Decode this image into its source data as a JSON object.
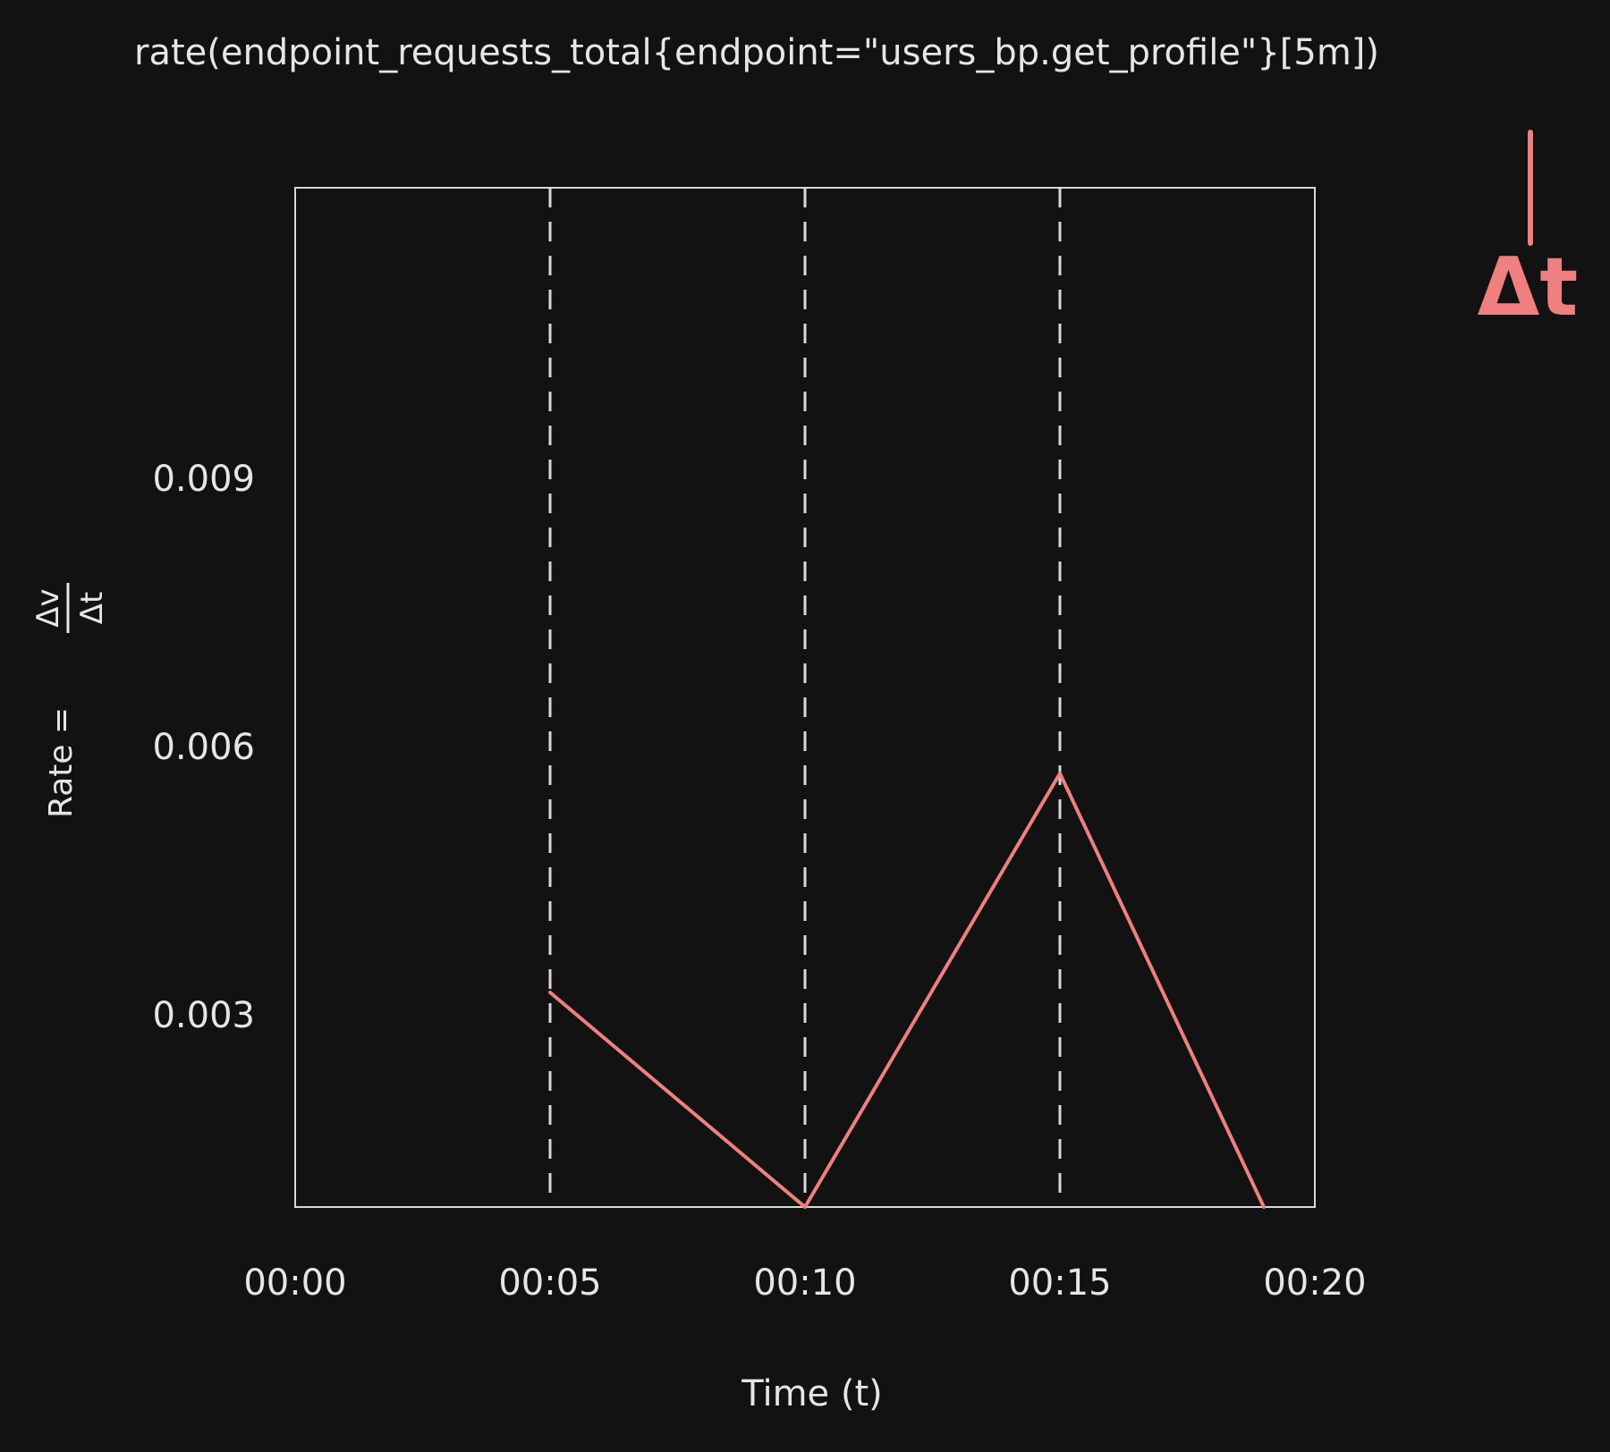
{
  "chart_data": {
    "type": "line",
    "title": "rate(endpoint_requests_total{endpoint=\"users_bp.get_profile\"}[5m])",
    "xlabel": "Time (t)",
    "ylabel_prefix": "Rate =",
    "ylabel_numerator": "Δv",
    "ylabel_denominator": "Δt",
    "x_ticks": [
      "00:00",
      "00:05",
      "00:10",
      "00:15",
      "00:20"
    ],
    "y_ticks": [
      "0.003",
      "0.006",
      "0.009"
    ],
    "xlim": [
      0,
      20
    ],
    "ylim": [
      0.00085,
      0.01225
    ],
    "vlines": [
      5,
      10,
      15
    ],
    "series": [
      {
        "x": [
          5,
          10,
          15,
          19
        ],
        "y": [
          0.00325,
          0.00085,
          0.0057,
          0.00085
        ]
      }
    ],
    "annotation": {
      "text": "Δt"
    },
    "colors": {
      "line": "#f07f7f",
      "axis": "#d8d8d8",
      "background": "#121212",
      "text": "#e6e6e6"
    }
  }
}
